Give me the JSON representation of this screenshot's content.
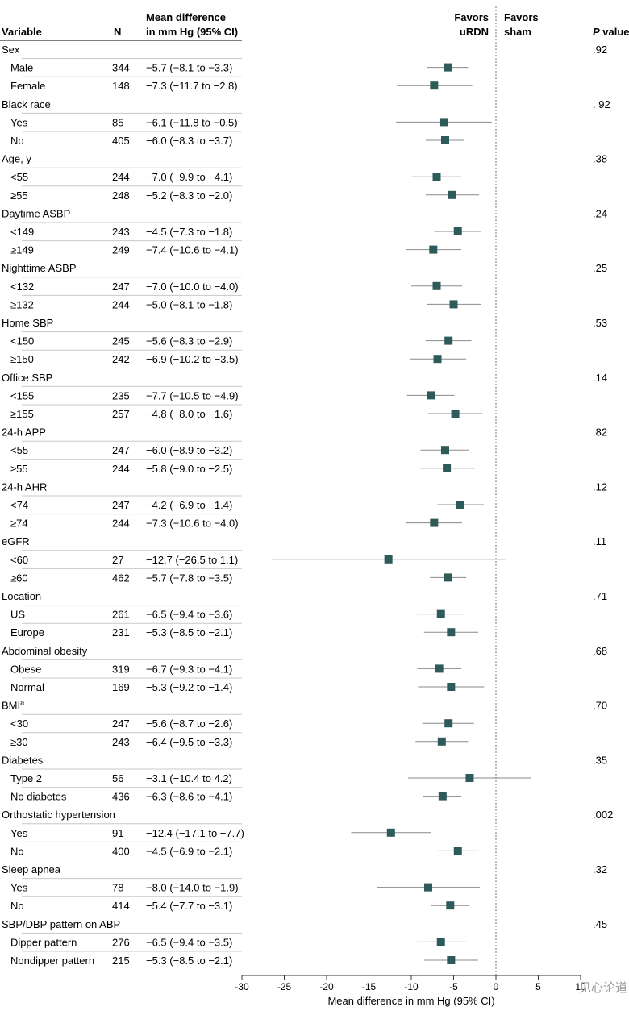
{
  "headers": {
    "variable": "Variable",
    "n": "N",
    "md_line1": "Mean difference",
    "md_line2": "in mm Hg (95% CI)",
    "favors_left_1": "Favors",
    "favors_left_2": "uRDN",
    "favors_right_1": "Favors",
    "favors_right_2": "sham",
    "pvalue_italic": "P",
    "pvalue_rest": " value"
  },
  "watermark": "见心论道",
  "chart_data": {
    "type": "forest",
    "xlabel": "Mean difference in mm Hg (95% CI)",
    "xlim": [
      -30,
      10
    ],
    "xticks": [
      "-30",
      "-25",
      "-20",
      "-15",
      "-10",
      "-5",
      "0",
      "5",
      "10"
    ],
    "xtick_values": [
      -30,
      -25,
      -20,
      -15,
      -10,
      -5,
      0,
      5,
      10
    ],
    "reference_line": 0,
    "marker_color": "#2e5a5a",
    "groups": [
      {
        "name": "Sex",
        "p": ".92",
        "rows": [
          {
            "label": "Male",
            "n": "344",
            "ci_text": "−5.7 (−8.1 to −3.3)",
            "est": -5.7,
            "lo": -8.1,
            "hi": -3.3
          },
          {
            "label": "Female",
            "n": "148",
            "ci_text": "−7.3 (−11.7 to −2.8)",
            "est": -7.3,
            "lo": -11.7,
            "hi": -2.8
          }
        ]
      },
      {
        "name": "Black race",
        "p": ". 92",
        "rows": [
          {
            "label": "Yes",
            "n": "85",
            "ci_text": "−6.1 (−11.8 to −0.5)",
            "est": -6.1,
            "lo": -11.8,
            "hi": -0.5
          },
          {
            "label": "No",
            "n": "405",
            "ci_text": "−6.0 (−8.3 to −3.7)",
            "est": -6.0,
            "lo": -8.3,
            "hi": -3.7
          }
        ]
      },
      {
        "name": "Age, y",
        "p": ".38",
        "rows": [
          {
            "label": "<55",
            "n": "244",
            "ci_text": "−7.0 (−9.9 to −4.1)",
            "est": -7.0,
            "lo": -9.9,
            "hi": -4.1
          },
          {
            "label": "≥55",
            "n": "248",
            "ci_text": "−5.2 (−8.3 to −2.0)",
            "est": -5.2,
            "lo": -8.3,
            "hi": -2.0
          }
        ]
      },
      {
        "name": "Daytime ASBP",
        "p": ".24",
        "rows": [
          {
            "label": "<149",
            "n": "243",
            "ci_text": "−4.5 (−7.3 to −1.8)",
            "est": -4.5,
            "lo": -7.3,
            "hi": -1.8
          },
          {
            "label": "≥149",
            "n": "249",
            "ci_text": "−7.4 (−10.6 to −4.1)",
            "est": -7.4,
            "lo": -10.6,
            "hi": -4.1
          }
        ]
      },
      {
        "name": "Nighttime ASBP",
        "p": ".25",
        "rows": [
          {
            "label": "<132",
            "n": "247",
            "ci_text": "−7.0 (−10.0 to −4.0)",
            "est": -7.0,
            "lo": -10.0,
            "hi": -4.0
          },
          {
            "label": "≥132",
            "n": "244",
            "ci_text": "−5.0 (−8.1 to −1.8)",
            "est": -5.0,
            "lo": -8.1,
            "hi": -1.8
          }
        ]
      },
      {
        "name": "Home SBP",
        "p": ".53",
        "rows": [
          {
            "label": "<150",
            "n": "245",
            "ci_text": "−5.6 (−8.3 to −2.9)",
            "est": -5.6,
            "lo": -8.3,
            "hi": -2.9
          },
          {
            "label": "≥150",
            "n": "242",
            "ci_text": "−6.9 (−10.2 to −3.5)",
            "est": -6.9,
            "lo": -10.2,
            "hi": -3.5
          }
        ]
      },
      {
        "name": "Office SBP",
        "p": ".14",
        "rows": [
          {
            "label": "<155",
            "n": "235",
            "ci_text": "−7.7 (−10.5 to −4.9)",
            "est": -7.7,
            "lo": -10.5,
            "hi": -4.9
          },
          {
            "label": "≥155",
            "n": "257",
            "ci_text": "−4.8 (−8.0 to −1.6)",
            "est": -4.8,
            "lo": -8.0,
            "hi": -1.6
          }
        ]
      },
      {
        "name": "24-h APP",
        "p": ".82",
        "rows": [
          {
            "label": "<55",
            "n": "247",
            "ci_text": "−6.0 (−8.9 to −3.2)",
            "est": -6.0,
            "lo": -8.9,
            "hi": -3.2
          },
          {
            "label": "≥55",
            "n": "244",
            "ci_text": "−5.8 (−9.0 to −2.5)",
            "est": -5.8,
            "lo": -9.0,
            "hi": -2.5
          }
        ]
      },
      {
        "name": "24-h AHR",
        "p": ".12",
        "rows": [
          {
            "label": "<74",
            "n": "247",
            "ci_text": "−4.2 (−6.9 to −1.4)",
            "est": -4.2,
            "lo": -6.9,
            "hi": -1.4
          },
          {
            "label": "≥74",
            "n": "244",
            "ci_text": "−7.3 (−10.6 to −4.0)",
            "est": -7.3,
            "lo": -10.6,
            "hi": -4.0
          }
        ]
      },
      {
        "name": "eGFR",
        "p": ".11",
        "rows": [
          {
            "label": "<60",
            "n": "27",
            "ci_text": "−12.7 (−26.5 to 1.1)",
            "est": -12.7,
            "lo": -26.5,
            "hi": 1.1
          },
          {
            "label": "≥60",
            "n": "462",
            "ci_text": "−5.7 (−7.8 to −3.5)",
            "est": -5.7,
            "lo": -7.8,
            "hi": -3.5
          }
        ]
      },
      {
        "name": "Location",
        "p": ".71",
        "rows": [
          {
            "label": "US",
            "n": "261",
            "ci_text": "−6.5 (−9.4 to −3.6)",
            "est": -6.5,
            "lo": -9.4,
            "hi": -3.6
          },
          {
            "label": "Europe",
            "n": "231",
            "ci_text": "−5.3 (−8.5 to −2.1)",
            "est": -5.3,
            "lo": -8.5,
            "hi": -2.1
          }
        ]
      },
      {
        "name": "Abdominal obesity",
        "p": ".68",
        "rows": [
          {
            "label": "Obese",
            "n": "319",
            "ci_text": "−6.7 (−9.3 to −4.1)",
            "est": -6.7,
            "lo": -9.3,
            "hi": -4.1
          },
          {
            "label": "Normal",
            "n": "169",
            "ci_text": "−5.3 (−9.2 to −1.4)",
            "est": -5.3,
            "lo": -9.2,
            "hi": -1.4
          }
        ]
      },
      {
        "name": "BMI",
        "name_sup": "a",
        "p": ".70",
        "rows": [
          {
            "label": "<30",
            "n": "247",
            "ci_text": "−5.6 (−8.7 to −2.6)",
            "est": -5.6,
            "lo": -8.7,
            "hi": -2.6
          },
          {
            "label": "≥30",
            "n": "243",
            "ci_text": "−6.4 (−9.5 to −3.3)",
            "est": -6.4,
            "lo": -9.5,
            "hi": -3.3
          }
        ]
      },
      {
        "name": "Diabetes",
        "p": ".35",
        "rows": [
          {
            "label": "Type 2",
            "n": "56",
            "ci_text": "−3.1 (−10.4 to 4.2)",
            "est": -3.1,
            "lo": -10.4,
            "hi": 4.2
          },
          {
            "label": "No diabetes",
            "n": "436",
            "ci_text": "−6.3 (−8.6 to −4.1)",
            "est": -6.3,
            "lo": -8.6,
            "hi": -4.1
          }
        ]
      },
      {
        "name": "Orthostatic hypertension",
        "p": ".002",
        "rows": [
          {
            "label": "Yes",
            "n": "91",
            "ci_text": "−12.4 (−17.1 to −7.7)",
            "est": -12.4,
            "lo": -17.1,
            "hi": -7.7
          },
          {
            "label": "No",
            "n": "400",
            "ci_text": "−4.5 (−6.9 to −2.1)",
            "est": -4.5,
            "lo": -6.9,
            "hi": -2.1
          }
        ]
      },
      {
        "name": "Sleep apnea",
        "p": ".32",
        "rows": [
          {
            "label": "Yes",
            "n": "78",
            "ci_text": "−8.0 (−14.0 to −1.9)",
            "est": -8.0,
            "lo": -14.0,
            "hi": -1.9
          },
          {
            "label": "No",
            "n": "414",
            "ci_text": "−5.4 (−7.7 to −3.1)",
            "est": -5.4,
            "lo": -7.7,
            "hi": -3.1
          }
        ]
      },
      {
        "name": "SBP/DBP pattern on ABP",
        "p": ".45",
        "rows": [
          {
            "label": "Dipper pattern",
            "n": "276",
            "ci_text": "−6.5 (−9.4 to −3.5)",
            "est": -6.5,
            "lo": -9.4,
            "hi": -3.5
          },
          {
            "label": "Nondipper pattern",
            "n": "215",
            "ci_text": "−5.3 (−8.5 to −2.1)",
            "est": -5.3,
            "lo": -8.5,
            "hi": -2.1
          }
        ]
      }
    ]
  }
}
